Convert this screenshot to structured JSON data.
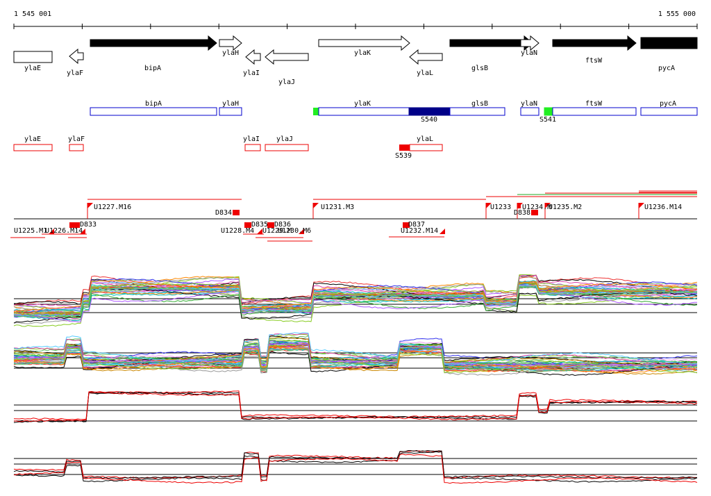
{
  "ruler": {
    "start": "1 545 001",
    "end": "1 555 000"
  },
  "genes": [
    "ylaE",
    "ylaF",
    "bipA",
    "ylaH",
    "ylaI",
    "ylaJ",
    "ylaK",
    "ylaL",
    "glsB",
    "ylaN",
    "ftsW",
    "pycA"
  ],
  "operons": [
    "bipA",
    "ylaH",
    "ylaK",
    "S540",
    "glsB",
    "ylaN",
    "S541",
    "ftsW",
    "pycA"
  ],
  "terminators": [
    "ylaE",
    "ylaF",
    "ylaI",
    "ylaJ",
    "ylaL",
    "S539"
  ],
  "segments": [
    "U1227.M16",
    "D834",
    "U1231.M3",
    "U1233",
    "U1234.M",
    "U1235.M2",
    "U1236.M14",
    "D838",
    "U1225.M1",
    "U1226.M14",
    "D833",
    "U1228.M4",
    "D835",
    "D836",
    "U1229.M",
    "U1230.M6",
    "D837",
    "U1232.M14"
  ]
}
